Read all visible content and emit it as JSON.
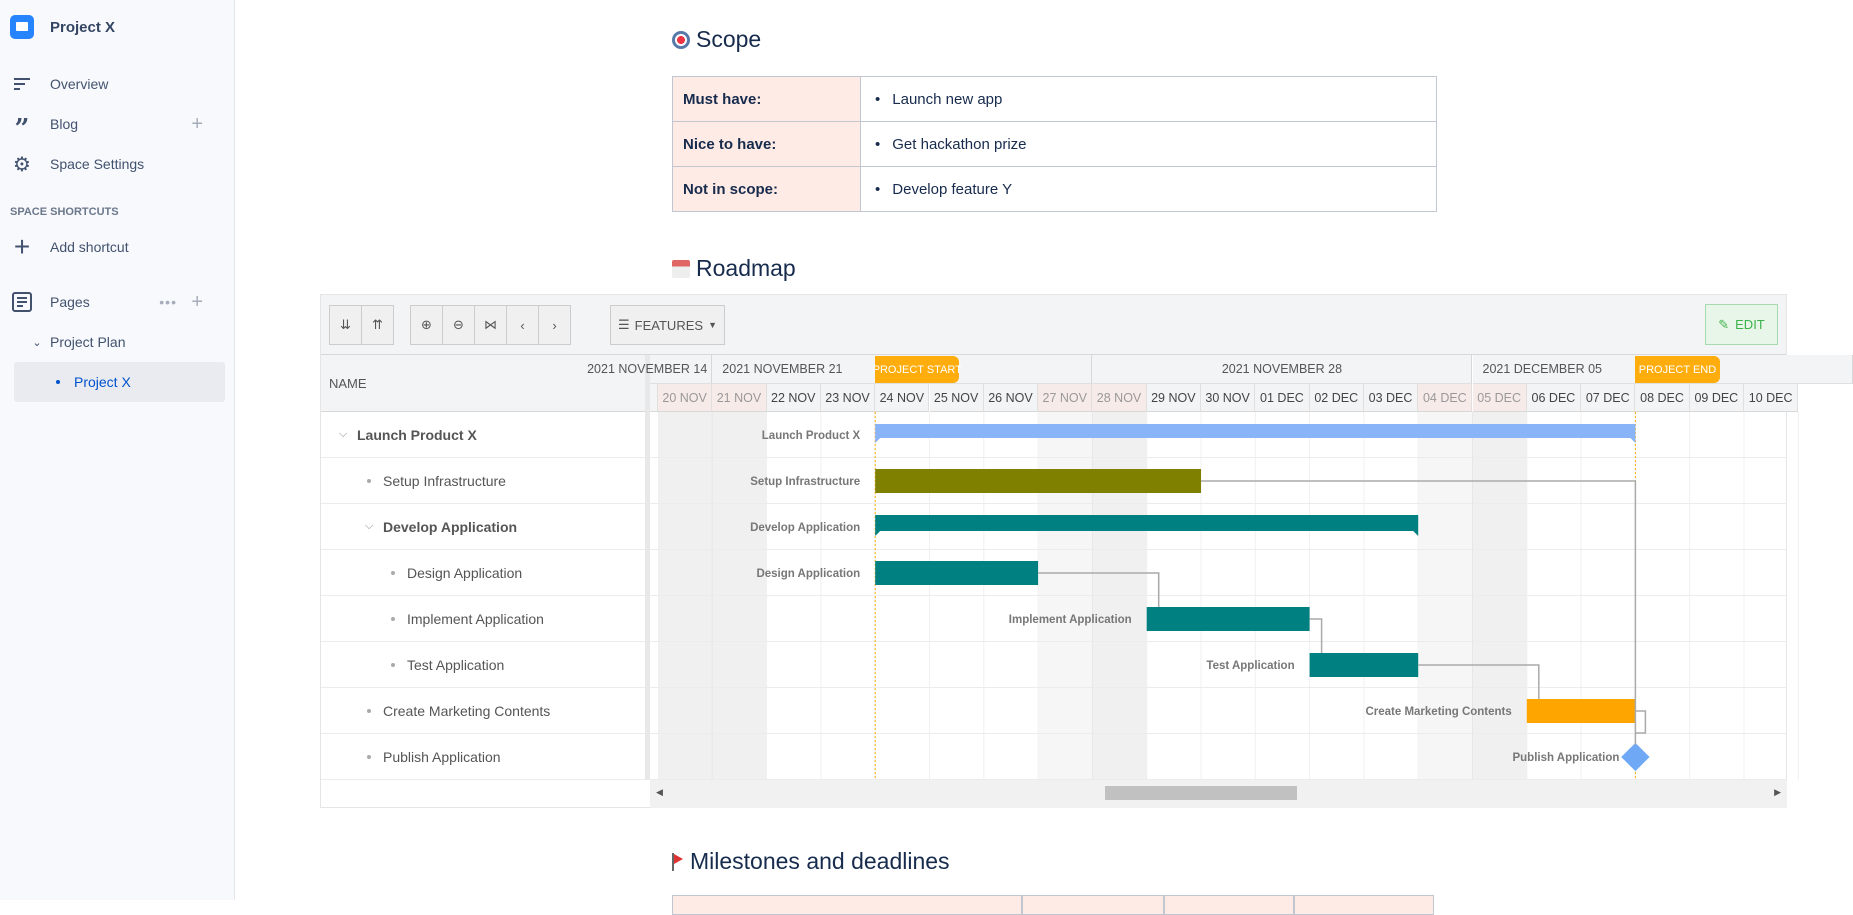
{
  "sidebar": {
    "space_name": "Project X",
    "items": [
      {
        "label": "Overview",
        "icon": "overview-icon"
      },
      {
        "label": "Blog",
        "icon": "quote-icon"
      },
      {
        "label": "Space Settings",
        "icon": "gear-icon"
      }
    ],
    "shortcuts_title": "SPACE SHORTCUTS",
    "add_shortcut": "Add shortcut",
    "pages_label": "Pages",
    "tree": [
      {
        "label": "Project Plan"
      },
      {
        "label": "Project X",
        "selected": true
      }
    ]
  },
  "scope": {
    "title": "Scope",
    "rows": [
      {
        "key": "Must have:",
        "value": "Launch new app"
      },
      {
        "key": "Nice to have:",
        "value": "Get hackathon prize"
      },
      {
        "key": "Not in scope:",
        "value": "Develop feature Y"
      }
    ]
  },
  "roadmap": {
    "title": "Roadmap",
    "toolbar": {
      "features_label": "FEATURES",
      "edit_label": "EDIT"
    },
    "name_header": "NAME",
    "weeks": [
      {
        "label": "2021 NOVEMBER 14",
        "start": "2021-11-14"
      },
      {
        "label": "2021 NOVEMBER 21",
        "start": "2021-11-21"
      },
      {
        "label": "2021 NOVEMBER 28",
        "start": "2021-11-28"
      },
      {
        "label": "2021 DECEMBER 05",
        "start": "2021-12-05"
      }
    ],
    "first_visible_day": "2021-11-20",
    "days": [
      "20 NOV",
      "21 NOV",
      "22 NOV",
      "23 NOV",
      "24 NOV",
      "25 NOV",
      "26 NOV",
      "27 NOV",
      "28 NOV",
      "29 NOV",
      "30 NOV",
      "01 DEC",
      "02 DEC",
      "03 DEC",
      "04 DEC",
      "05 DEC",
      "06 DEC",
      "07 DEC",
      "08 DEC",
      "09 DEC",
      "10 DEC"
    ],
    "weekend_days": [
      "20 NOV",
      "21 NOV",
      "27 NOV",
      "28 NOV",
      "04 DEC",
      "05 DEC"
    ],
    "markers": [
      {
        "label": "PROJECT START",
        "date": "2021-11-24"
      },
      {
        "label": "PROJECT END",
        "date": "2021-12-08"
      }
    ],
    "colors": {
      "summary_blue": "#8ab4f8",
      "olive": "#808000",
      "teal": "#008080",
      "orange": "#ffa500",
      "milestone": "#6fa8f5",
      "marker": "#ffad0d"
    },
    "tasks": [
      {
        "name": "Launch Product X",
        "level": 0,
        "type": "summary",
        "start": "2021-11-24",
        "end": "2021-12-08",
        "color": "#8ab4f8"
      },
      {
        "name": "Setup Infrastructure",
        "level": 1,
        "type": "task",
        "start": "2021-11-24",
        "end": "2021-11-30",
        "color": "#808000"
      },
      {
        "name": "Develop Application",
        "level": 1,
        "type": "summary",
        "start": "2021-11-24",
        "end": "2021-12-04",
        "color": "#008080"
      },
      {
        "name": "Design Application",
        "level": 2,
        "type": "task",
        "start": "2021-11-24",
        "end": "2021-11-27",
        "color": "#008080"
      },
      {
        "name": "Implement Application",
        "level": 2,
        "type": "task",
        "start": "2021-11-29",
        "end": "2021-12-02",
        "color": "#008080"
      },
      {
        "name": "Test Application",
        "level": 2,
        "type": "task",
        "start": "2021-12-02",
        "end": "2021-12-04",
        "color": "#008080"
      },
      {
        "name": "Create Marketing Contents",
        "level": 1,
        "type": "task",
        "start": "2021-12-06",
        "end": "2021-12-08",
        "color": "#ffa500"
      },
      {
        "name": "Publish Application",
        "level": 1,
        "type": "milestone",
        "start": "2021-12-08",
        "end": "2021-12-08",
        "color": "#6fa8f5"
      }
    ],
    "dependencies": [
      [
        1,
        7
      ],
      [
        3,
        4
      ],
      [
        4,
        5
      ],
      [
        5,
        6
      ],
      [
        6,
        7
      ]
    ]
  },
  "milestones": {
    "title": "Milestones and deadlines"
  }
}
